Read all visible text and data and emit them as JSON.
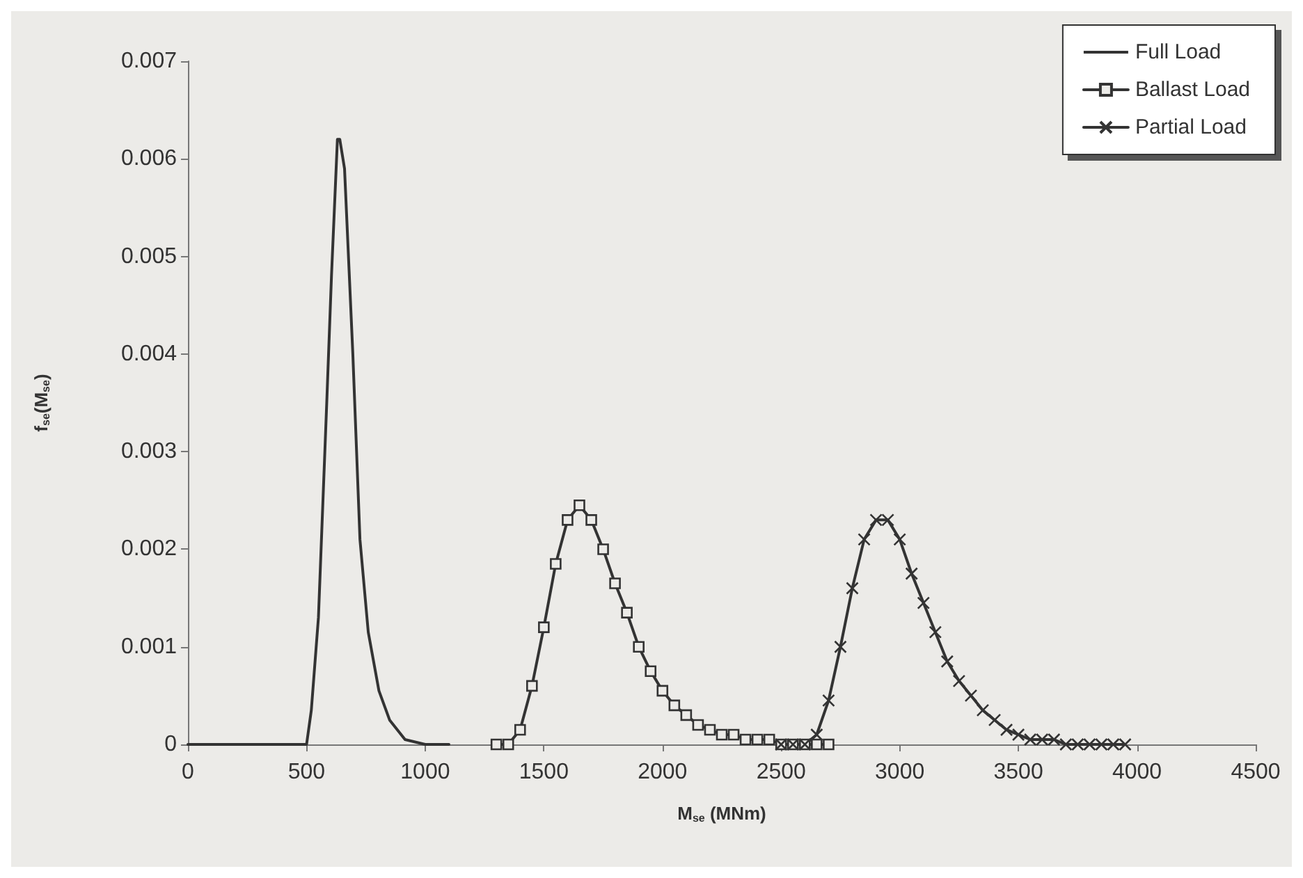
{
  "chart_data": {
    "type": "line",
    "xlabel": "M$_{se}$ (MNm)",
    "ylabel": "f$_{se}$(M$_{se}$)",
    "xlim": [
      0,
      4500
    ],
    "xticks": [
      0,
      500,
      1000,
      1500,
      2000,
      2500,
      3000,
      3500,
      4000,
      4500
    ],
    "ylim": [
      0,
      0.007
    ],
    "yticks": [
      0,
      0.001,
      0.002,
      0.003,
      0.004,
      0.005,
      0.006,
      0.007
    ],
    "grid": false,
    "legend": "top right",
    "line_style": "solid",
    "series": [
      {
        "name": "Full Load",
        "color": "#333333",
        "marker": "none",
        "x": [
          0,
          100,
          200,
          300,
          400,
          480,
          500,
          520,
          550,
          585,
          605,
          630,
          640,
          660,
          695,
          725,
          760,
          805,
          850,
          915,
          1000,
          1100
        ],
        "values": [
          0,
          0,
          0,
          0,
          0,
          0,
          0,
          0.00035,
          0.0013,
          0.0035,
          0.0048,
          0.0062,
          0.0062,
          0.0059,
          0.004,
          0.0021,
          0.00115,
          0.00055,
          0.00025,
          5e-05,
          0,
          0
        ]
      },
      {
        "name": "Ballast Load",
        "color": "#333333",
        "marker": "square",
        "x": [
          1300,
          1350,
          1400,
          1450,
          1500,
          1550,
          1600,
          1650,
          1700,
          1750,
          1800,
          1850,
          1900,
          1950,
          2000,
          2050,
          2100,
          2150,
          2200,
          2250,
          2300,
          2350,
          2400,
          2450,
          2500,
          2550,
          2600,
          2650,
          2700
        ],
        "values": [
          0,
          0,
          0.00015,
          0.0006,
          0.0012,
          0.00185,
          0.0023,
          0.00245,
          0.0023,
          0.002,
          0.00165,
          0.00135,
          0.001,
          0.00075,
          0.00055,
          0.0004,
          0.0003,
          0.0002,
          0.00015,
          0.0001,
          0.0001,
          5e-05,
          5e-05,
          5e-05,
          0,
          0,
          0,
          0,
          0
        ]
      },
      {
        "name": "Partial Load",
        "color": "#333333",
        "marker": "cross",
        "x": [
          2500,
          2550,
          2600,
          2650,
          2700,
          2750,
          2800,
          2850,
          2900,
          2950,
          3000,
          3050,
          3100,
          3150,
          3200,
          3250,
          3300,
          3350,
          3400,
          3450,
          3500,
          3550,
          3600,
          3650,
          3700,
          3750,
          3800,
          3850,
          3900,
          3950
        ],
        "values": [
          0,
          0,
          0,
          0.0001,
          0.00045,
          0.001,
          0.0016,
          0.0021,
          0.0023,
          0.0023,
          0.0021,
          0.00175,
          0.00145,
          0.00115,
          0.00085,
          0.00065,
          0.0005,
          0.00035,
          0.00025,
          0.00015,
          0.0001,
          5e-05,
          5e-05,
          5e-05,
          0,
          0,
          0,
          0,
          0,
          0
        ]
      }
    ]
  }
}
